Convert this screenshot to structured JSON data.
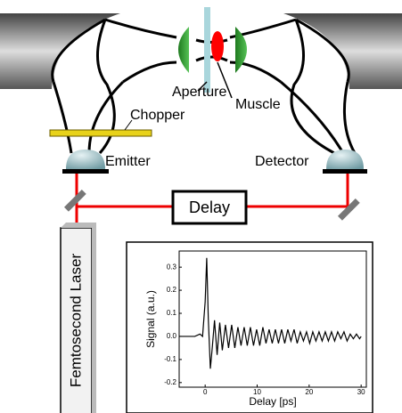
{
  "diagram": {
    "aperture": "Aperture",
    "muscle": "Muscle",
    "chopper": "Chopper",
    "emitter": "Emitter",
    "detector": "Detector",
    "delay": "Delay",
    "laser": "Femtosecond Laser"
  },
  "chart_data": {
    "type": "line",
    "xlabel": "Delay [ps]",
    "ylabel": "Signal (a.u.)",
    "xlim": [
      -5,
      31
    ],
    "ylim": [
      -0.22,
      0.37
    ],
    "xticks": [
      0,
      10,
      20,
      30
    ],
    "yticks": [
      0.3,
      0.2,
      0.1,
      {
        "value": 0,
        "label": "0.0"
      },
      -0.1,
      -0.2
    ],
    "x": [
      -5,
      -4,
      -3,
      -2,
      -1,
      -0.5,
      0,
      0.3,
      0.6,
      1,
      1.4,
      1.8,
      2.3,
      2.8,
      3.3,
      3.9,
      4.5,
      5.1,
      5.7,
      6.3,
      6.9,
      7.5,
      8.1,
      8.7,
      9.3,
      9.9,
      10.5,
      11.1,
      11.7,
      12.3,
      12.9,
      13.5,
      14.1,
      14.7,
      15.3,
      15.9,
      16.5,
      17.1,
      17.7,
      18.3,
      18.9,
      19.5,
      20.1,
      20.7,
      21.3,
      21.9,
      22.5,
      23.1,
      23.7,
      24.3,
      24.9,
      25.5,
      26.1,
      26.7,
      27.3,
      27.9,
      28.5,
      29.1,
      29.7,
      30
    ],
    "series": [
      {
        "color": "#000000",
        "values": [
          0,
          0,
          0,
          0,
          0.01,
          0,
          0.15,
          0.34,
          0.08,
          -0.14,
          -0.04,
          0.07,
          -0.08,
          0.06,
          -0.06,
          0.05,
          -0.05,
          0.05,
          -0.05,
          0.04,
          -0.04,
          0.04,
          -0.04,
          0.04,
          -0.04,
          0.03,
          -0.04,
          0.04,
          -0.03,
          0.03,
          -0.03,
          0.03,
          -0.03,
          0.03,
          -0.03,
          0.03,
          -0.02,
          0.03,
          -0.03,
          0.02,
          -0.02,
          0.02,
          -0.03,
          0.02,
          -0.02,
          0.02,
          -0.02,
          0.02,
          -0.02,
          0.02,
          -0.02,
          0.02,
          -0.01,
          0.02,
          -0.02,
          0.01,
          -0.01,
          0.01,
          -0.01,
          0
        ]
      }
    ]
  }
}
